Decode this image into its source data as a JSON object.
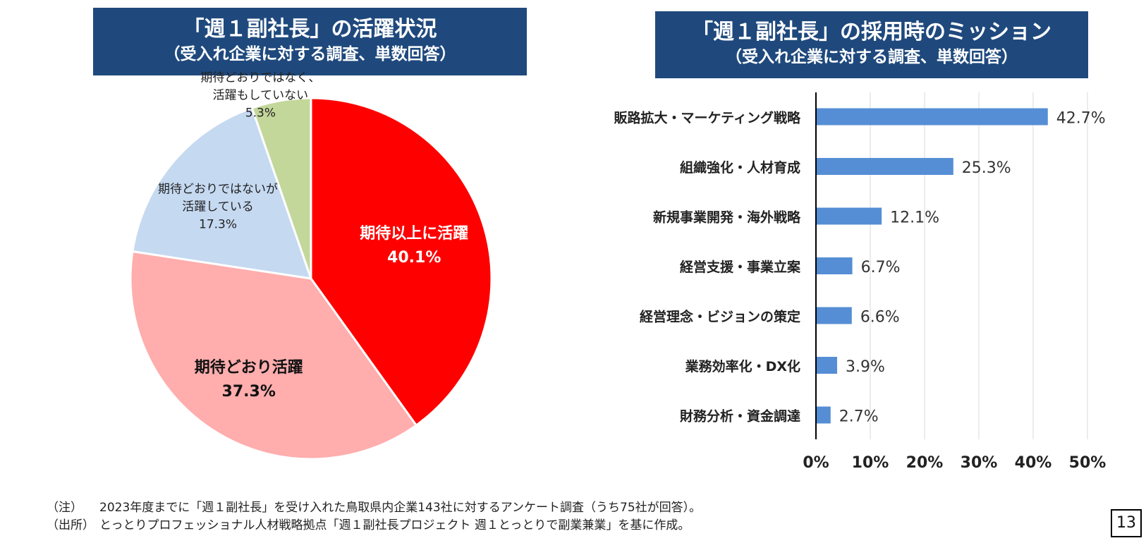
{
  "titles": {
    "left_main": "「週１副社長」の活躍状況",
    "left_sub": "（受入れ企業に対する調査、単数回答）",
    "right_main": "「週１副社長」の採用時のミッション",
    "right_sub": "（受入れ企業に対する調査、単数回答）"
  },
  "chart_data": [
    {
      "type": "pie",
      "title": "「週１副社長」の活躍状況",
      "subtitle": "（受入れ企業に対する調査、単数回答）",
      "unit": "%",
      "slices": [
        {
          "label": "期待以上に活躍",
          "value": 40.1,
          "value_label": "40.1%",
          "color": "#ff0000"
        },
        {
          "label": "期待どおり活躍",
          "value": 37.3,
          "value_label": "37.3%",
          "color": "#ffadad"
        },
        {
          "label": "期待どおりではないが活躍している",
          "lines": [
            "期待どおりではないが",
            "活躍している"
          ],
          "value": 17.3,
          "value_label": "17.3%",
          "color": "#c5d9f1"
        },
        {
          "label": "期待どおりではなく、活躍もしていない",
          "lines": [
            "期待どおりではなく、",
            "活躍もしていない"
          ],
          "value": 5.3,
          "value_label": "5.3%",
          "color": "#c4d79b"
        }
      ]
    },
    {
      "type": "bar",
      "orientation": "horizontal",
      "title": "「週１副社長」の採用時のミッション",
      "subtitle": "（受入れ企業に対する調査、単数回答）",
      "categories": [
        "販路拡大・マーケティング戦略",
        "組織強化・人材育成",
        "新規事業開発・海外戦略",
        "経営支援・事業立案",
        "経営理念・ビジョンの策定",
        "業務効率化・DX化",
        "財務分析・資金調達"
      ],
      "values": [
        42.7,
        25.3,
        12.1,
        6.7,
        6.6,
        3.9,
        2.7
      ],
      "value_labels": [
        "42.7%",
        "25.3%",
        "12.1%",
        "6.7%",
        "6.6%",
        "3.9%",
        "2.7%"
      ],
      "xlim": [
        0,
        50
      ],
      "xticks": [
        "0%",
        "10%",
        "20%",
        "30%",
        "40%",
        "50%"
      ],
      "grid": "vertical",
      "bar_color": "#558ed5"
    }
  ],
  "notes": [
    {
      "tag": "（注）",
      "text": "2023年度までに「週１副社長」を受け入れた鳥取県内企業143社に対するアンケート調査（うち75社が回答）。"
    },
    {
      "tag": "（出所）",
      "text": "とっとりプロフェッショナル人材戦略拠点「週１副社長プロジェクト 週１とっとりで副業兼業」を基に作成。"
    }
  ],
  "page_number": "13"
}
